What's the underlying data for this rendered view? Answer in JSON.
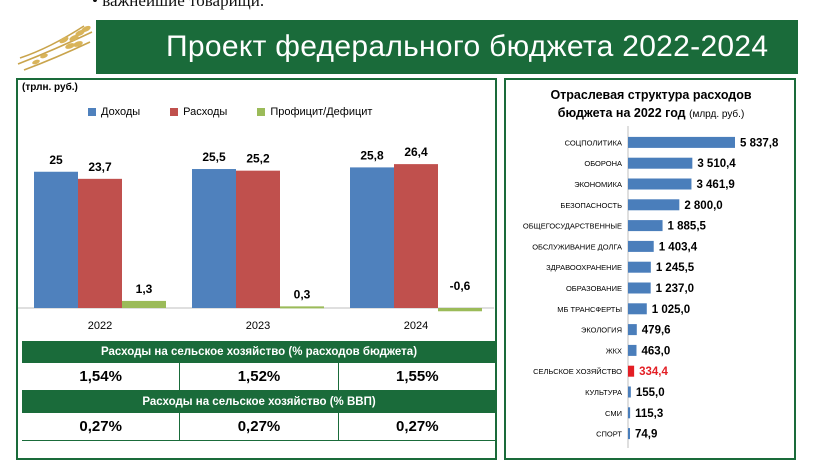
{
  "header": {
    "top_fragment": "• важнейшие товарищи.",
    "title": "Проект федерального бюджета 2022-2024"
  },
  "colors": {
    "brand_green": "#1a6b3a",
    "income": "#4f81bd",
    "expense": "#c0504d",
    "balance": "#9bbb59",
    "highlight": "#e31e24",
    "hbar": "#4a7ebb"
  },
  "left_chart": {
    "unit_label": "(трлн. руб.)",
    "chart_data": {
      "type": "bar",
      "categories": [
        "2022",
        "2023",
        "2024"
      ],
      "series": [
        {
          "name": "Доходы",
          "values": [
            25,
            25.5,
            25.8
          ],
          "labels": [
            "25",
            "25,5",
            "25,8"
          ]
        },
        {
          "name": "Расходы",
          "values": [
            23.7,
            25.2,
            26.4
          ],
          "labels": [
            "23,7",
            "25,2",
            "26,4"
          ]
        },
        {
          "name": "Профицит/Дефицит",
          "values": [
            1.3,
            0.3,
            -0.6
          ],
          "labels": [
            "1,3",
            "0,3",
            "-0,6"
          ]
        }
      ]
    }
  },
  "agri_table": {
    "header1": "Расходы на сельское хозяйство (% расходов бюджета)",
    "row1": [
      "1,54%",
      "1,52%",
      "1,55%"
    ],
    "header2": "Расходы на сельское хозяйство (% ВВП)",
    "row2": [
      "0,27%",
      "0,27%",
      "0,27%"
    ]
  },
  "right_chart": {
    "title_line1": "Отраслевая структура расходов",
    "title_line2": "бюджета на 2022 год",
    "unit": "(млрд. руб.)",
    "chart_data": {
      "type": "bar",
      "orientation": "horizontal",
      "categories": [
        "СОЦПОЛИТИКА",
        "ОБОРОНА",
        "ЭКОНОМИКА",
        "БЕЗОПАСНОСТЬ",
        "ОБЩЕГОСУДАРСТВЕННЫЕ",
        "ОБСЛУЖИВАНИЕ ДОЛГА",
        "ЗДРАВООХРАНЕНИЕ",
        "ОБРАЗОВАНИЕ",
        "МБ ТРАНСФЕРТЫ",
        "ЭКОЛОГИЯ",
        "ЖКХ",
        "СЕЛЬСКОЕ ХОЗЯЙСТВО",
        "КУЛЬТУРА",
        "СМИ",
        "СПОРТ"
      ],
      "values": [
        5837.8,
        3510.4,
        3461.9,
        2800.0,
        1885.5,
        1403.4,
        1245.5,
        1237.0,
        1025.0,
        479.6,
        463.0,
        334.4,
        155.0,
        115.3,
        74.9
      ],
      "labels": [
        "5 837,8",
        "3 510,4",
        "3 461,9",
        "2 800,0",
        "1 885,5",
        "1 403,4",
        "1 245,5",
        "1 237,0",
        "1 025,0",
        "479,6",
        "463,0",
        "334,4",
        "155,0",
        "115,3",
        "74,9"
      ],
      "highlight": "СЕЛЬСКОЕ ХОЗЯЙСТВО"
    }
  }
}
